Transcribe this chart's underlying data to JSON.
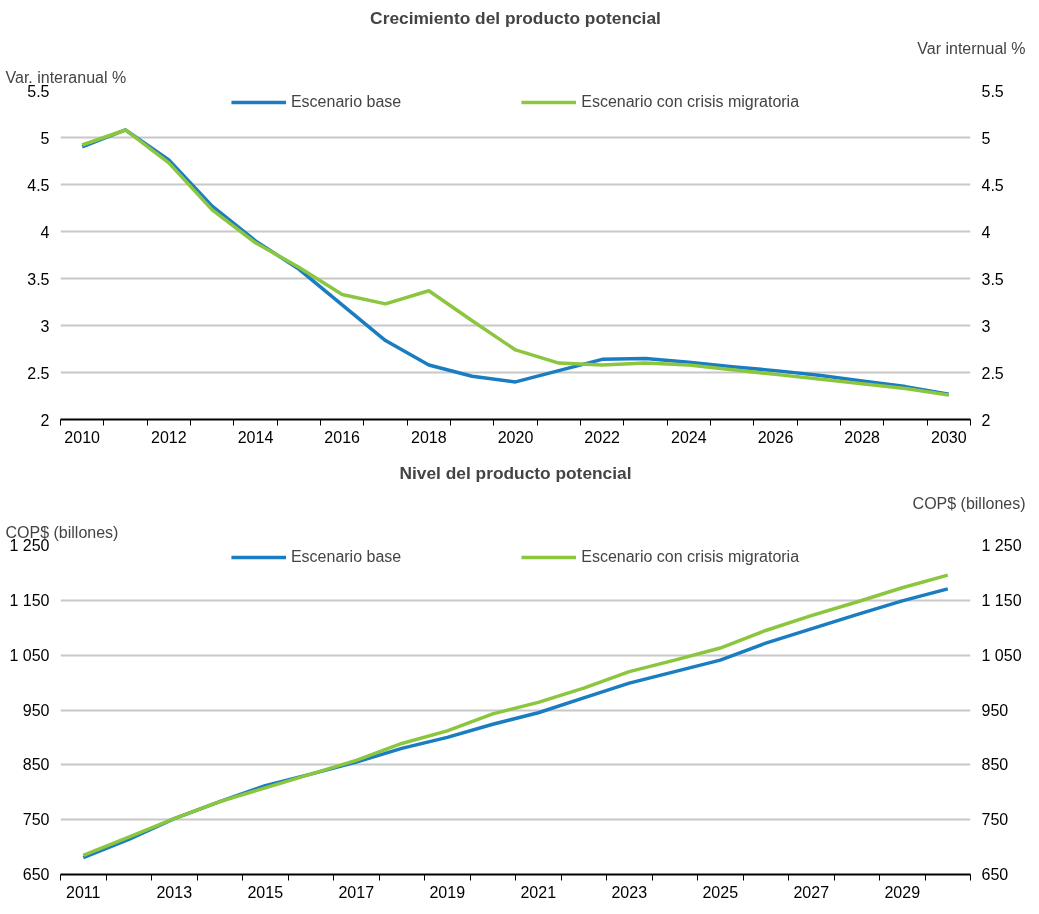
{
  "chart_data": [
    {
      "type": "line",
      "title": "Crecimiento del producto potencial",
      "ylabel": "Var. interanual %",
      "y2label": "Var internual %",
      "categories": [
        "2010",
        null,
        "2012",
        null,
        "2014",
        null,
        "2016",
        null,
        "2018",
        null,
        "2020",
        null,
        "2022",
        null,
        "2024",
        null,
        "2026",
        null,
        "2028",
        null,
        "2030"
      ],
      "series": [
        {
          "name": "Escenario base",
          "color": "#1a7cc1",
          "values": [
            4.9,
            5.08,
            4.76,
            4.27,
            3.9,
            3.6,
            3.22,
            2.84,
            2.58,
            2.46,
            2.4,
            2.52,
            2.64,
            2.65,
            2.61,
            2.56,
            2.52,
            2.47,
            2.41,
            2.35,
            2.27
          ]
        },
        {
          "name": "Escenario con crisis migratoria",
          "color": "#8cc63f",
          "values": [
            4.92,
            5.08,
            4.73,
            4.23,
            3.88,
            3.62,
            3.33,
            3.23,
            3.37,
            3.05,
            2.74,
            2.6,
            2.58,
            2.6,
            2.58,
            2.53,
            2.48,
            2.43,
            2.38,
            2.33,
            2.26
          ]
        }
      ],
      "ylim": [
        2,
        5.5
      ],
      "yticks": [
        2,
        2.5,
        3,
        3.5,
        4,
        4.5,
        5,
        5.5
      ],
      "y2lim": [
        2,
        5.5
      ],
      "y2ticks": [
        2,
        2.5,
        3,
        3.5,
        4,
        4.5,
        5,
        5.5
      ],
      "grid": "y",
      "legend": "top"
    },
    {
      "type": "line",
      "title": "Nivel del producto potencial",
      "ylabel": "COP$ (billones)",
      "y2label": "COP$ (billones)",
      "categories": [
        "2011",
        null,
        "2013",
        null,
        "2015",
        null,
        "2017",
        null,
        "2019",
        null,
        "2021",
        null,
        "2023",
        null,
        "2025",
        null,
        "2027",
        null,
        "2029",
        null
      ],
      "series": [
        {
          "name": "Escenario base",
          "color": "#1a7cc1",
          "values": [
            681,
            714,
            752,
            783,
            812,
            833,
            855,
            880,
            900,
            924,
            945,
            972,
            999,
            1020,
            1041,
            1072,
            1098,
            1124,
            1149,
            1171
          ]
        },
        {
          "name": "Escenario con crisis migratoria",
          "color": "#8cc63f",
          "values": [
            685,
            718,
            752,
            783,
            808,
            833,
            858,
            889,
            912,
            943,
            964,
            990,
            1020,
            1041,
            1063,
            1095,
            1122,
            1147,
            1173,
            1196
          ]
        }
      ],
      "ylim": [
        650,
        1250
      ],
      "yticks": [
        650,
        750,
        850,
        950,
        {
          "value": 1050,
          "label": "1 050"
        },
        {
          "value": 1150,
          "label": "1 150"
        },
        {
          "value": 1250,
          "label": "1 250"
        }
      ],
      "y2lim": [
        650,
        1250
      ],
      "y2ticks": [
        650,
        750,
        850,
        950,
        {
          "value": 1050,
          "label": "1 050"
        },
        {
          "value": 1150,
          "label": "1 150"
        },
        {
          "value": 1250,
          "label": "1 250"
        }
      ],
      "grid": "y",
      "legend": "top"
    }
  ]
}
